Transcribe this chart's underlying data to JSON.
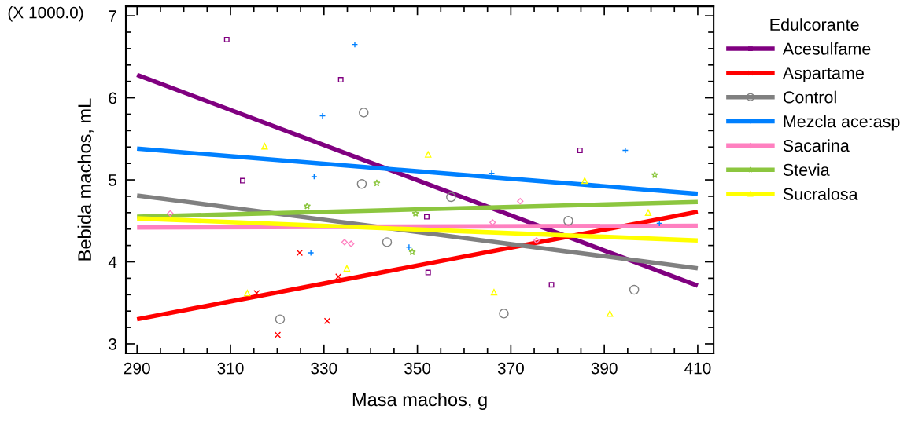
{
  "chart_data": {
    "type": "scatter",
    "xlabel": "Masa machos, g",
    "ylabel": "Bebida machos, mL",
    "legend_title": "Edulcorante",
    "legend": "right",
    "grid": false,
    "annotations": [
      "(X 1000.0)"
    ],
    "xlim": [
      287.6,
      413.4
    ],
    "xticks": [
      290,
      310,
      330,
      350,
      370,
      390,
      410
    ],
    "ylim": [
      2.885,
      7.115
    ],
    "yticks": [
      3,
      4,
      5,
      6,
      7
    ],
    "series": [
      {
        "name": "Acesulfame",
        "color": "#800080",
        "marker": "square",
        "x": [
          309.2,
          333.6,
          312.6,
          352.0,
          352.3,
          384.8,
          378.7
        ],
        "values": [
          6.71,
          6.22,
          4.99,
          4.55,
          3.87,
          5.36,
          3.72
        ]
      },
      {
        "name": "Aspartame",
        "color": "#ff0000",
        "marker": "cross",
        "x": [
          324.8,
          315.6,
          333.1,
          320.1,
          330.7
        ],
        "values": [
          4.11,
          3.62,
          3.82,
          3.11,
          3.28
        ]
      },
      {
        "name": "Control",
        "color": "#808080",
        "marker": "circle",
        "x": [
          338.5,
          338.1,
          320.6,
          343.5,
          357.2,
          368.5,
          382.3,
          396.4
        ],
        "values": [
          5.82,
          4.95,
          3.3,
          4.24,
          4.79,
          3.37,
          4.5,
          3.66
        ]
      },
      {
        "name": "Mezcla ace:asp",
        "color": "#0080ff",
        "marker": "plus",
        "x": [
          336.6,
          329.7,
          327.9,
          365.9,
          394.5,
          327.2,
          348.2,
          401.8
        ],
        "values": [
          6.65,
          5.78,
          5.04,
          5.08,
          5.36,
          4.11,
          4.18,
          4.47
        ]
      },
      {
        "name": "Sacarina",
        "color": "#ff80c0",
        "marker": "diamond",
        "x": [
          297.1,
          334.4,
          335.8,
          366.1,
          372.0,
          375.5
        ],
        "values": [
          4.59,
          4.24,
          4.22,
          4.48,
          4.74,
          4.26
        ]
      },
      {
        "name": "Stevia",
        "color": "#8cc63f",
        "marker": "star",
        "x": [
          341.3,
          326.4,
          349.6,
          348.9,
          400.8
        ],
        "values": [
          4.96,
          4.68,
          4.59,
          4.12,
          5.06
        ]
      },
      {
        "name": "Sucralosa",
        "color": "#ffff00",
        "marker": "triangle",
        "x": [
          317.3,
          352.3,
          385.8,
          313.6,
          334.9,
          399.4,
          366.4,
          391.2
        ],
        "values": [
          5.41,
          5.31,
          4.99,
          3.62,
          3.92,
          4.6,
          3.63,
          3.37
        ]
      },
      {
        "type": "line",
        "color": "#800080",
        "x": [
          290,
          410
        ],
        "values": [
          6.28,
          3.71
        ]
      },
      {
        "type": "line",
        "color": "#ff0000",
        "x": [
          290,
          410
        ],
        "values": [
          3.3,
          4.61
        ]
      },
      {
        "type": "line",
        "color": "#808080",
        "x": [
          290,
          410
        ],
        "values": [
          4.81,
          3.92
        ]
      },
      {
        "type": "line",
        "color": "#0080ff",
        "x": [
          290,
          410
        ],
        "values": [
          5.38,
          4.83
        ]
      },
      {
        "type": "line",
        "color": "#ff80c0",
        "x": [
          290,
          410
        ],
        "values": [
          4.42,
          4.44
        ]
      },
      {
        "type": "line",
        "color": "#8cc63f",
        "x": [
          290,
          410
        ],
        "values": [
          4.55,
          4.73
        ]
      },
      {
        "type": "line",
        "color": "#ffff00",
        "x": [
          290,
          410
        ],
        "values": [
          4.53,
          4.26
        ]
      }
    ]
  }
}
